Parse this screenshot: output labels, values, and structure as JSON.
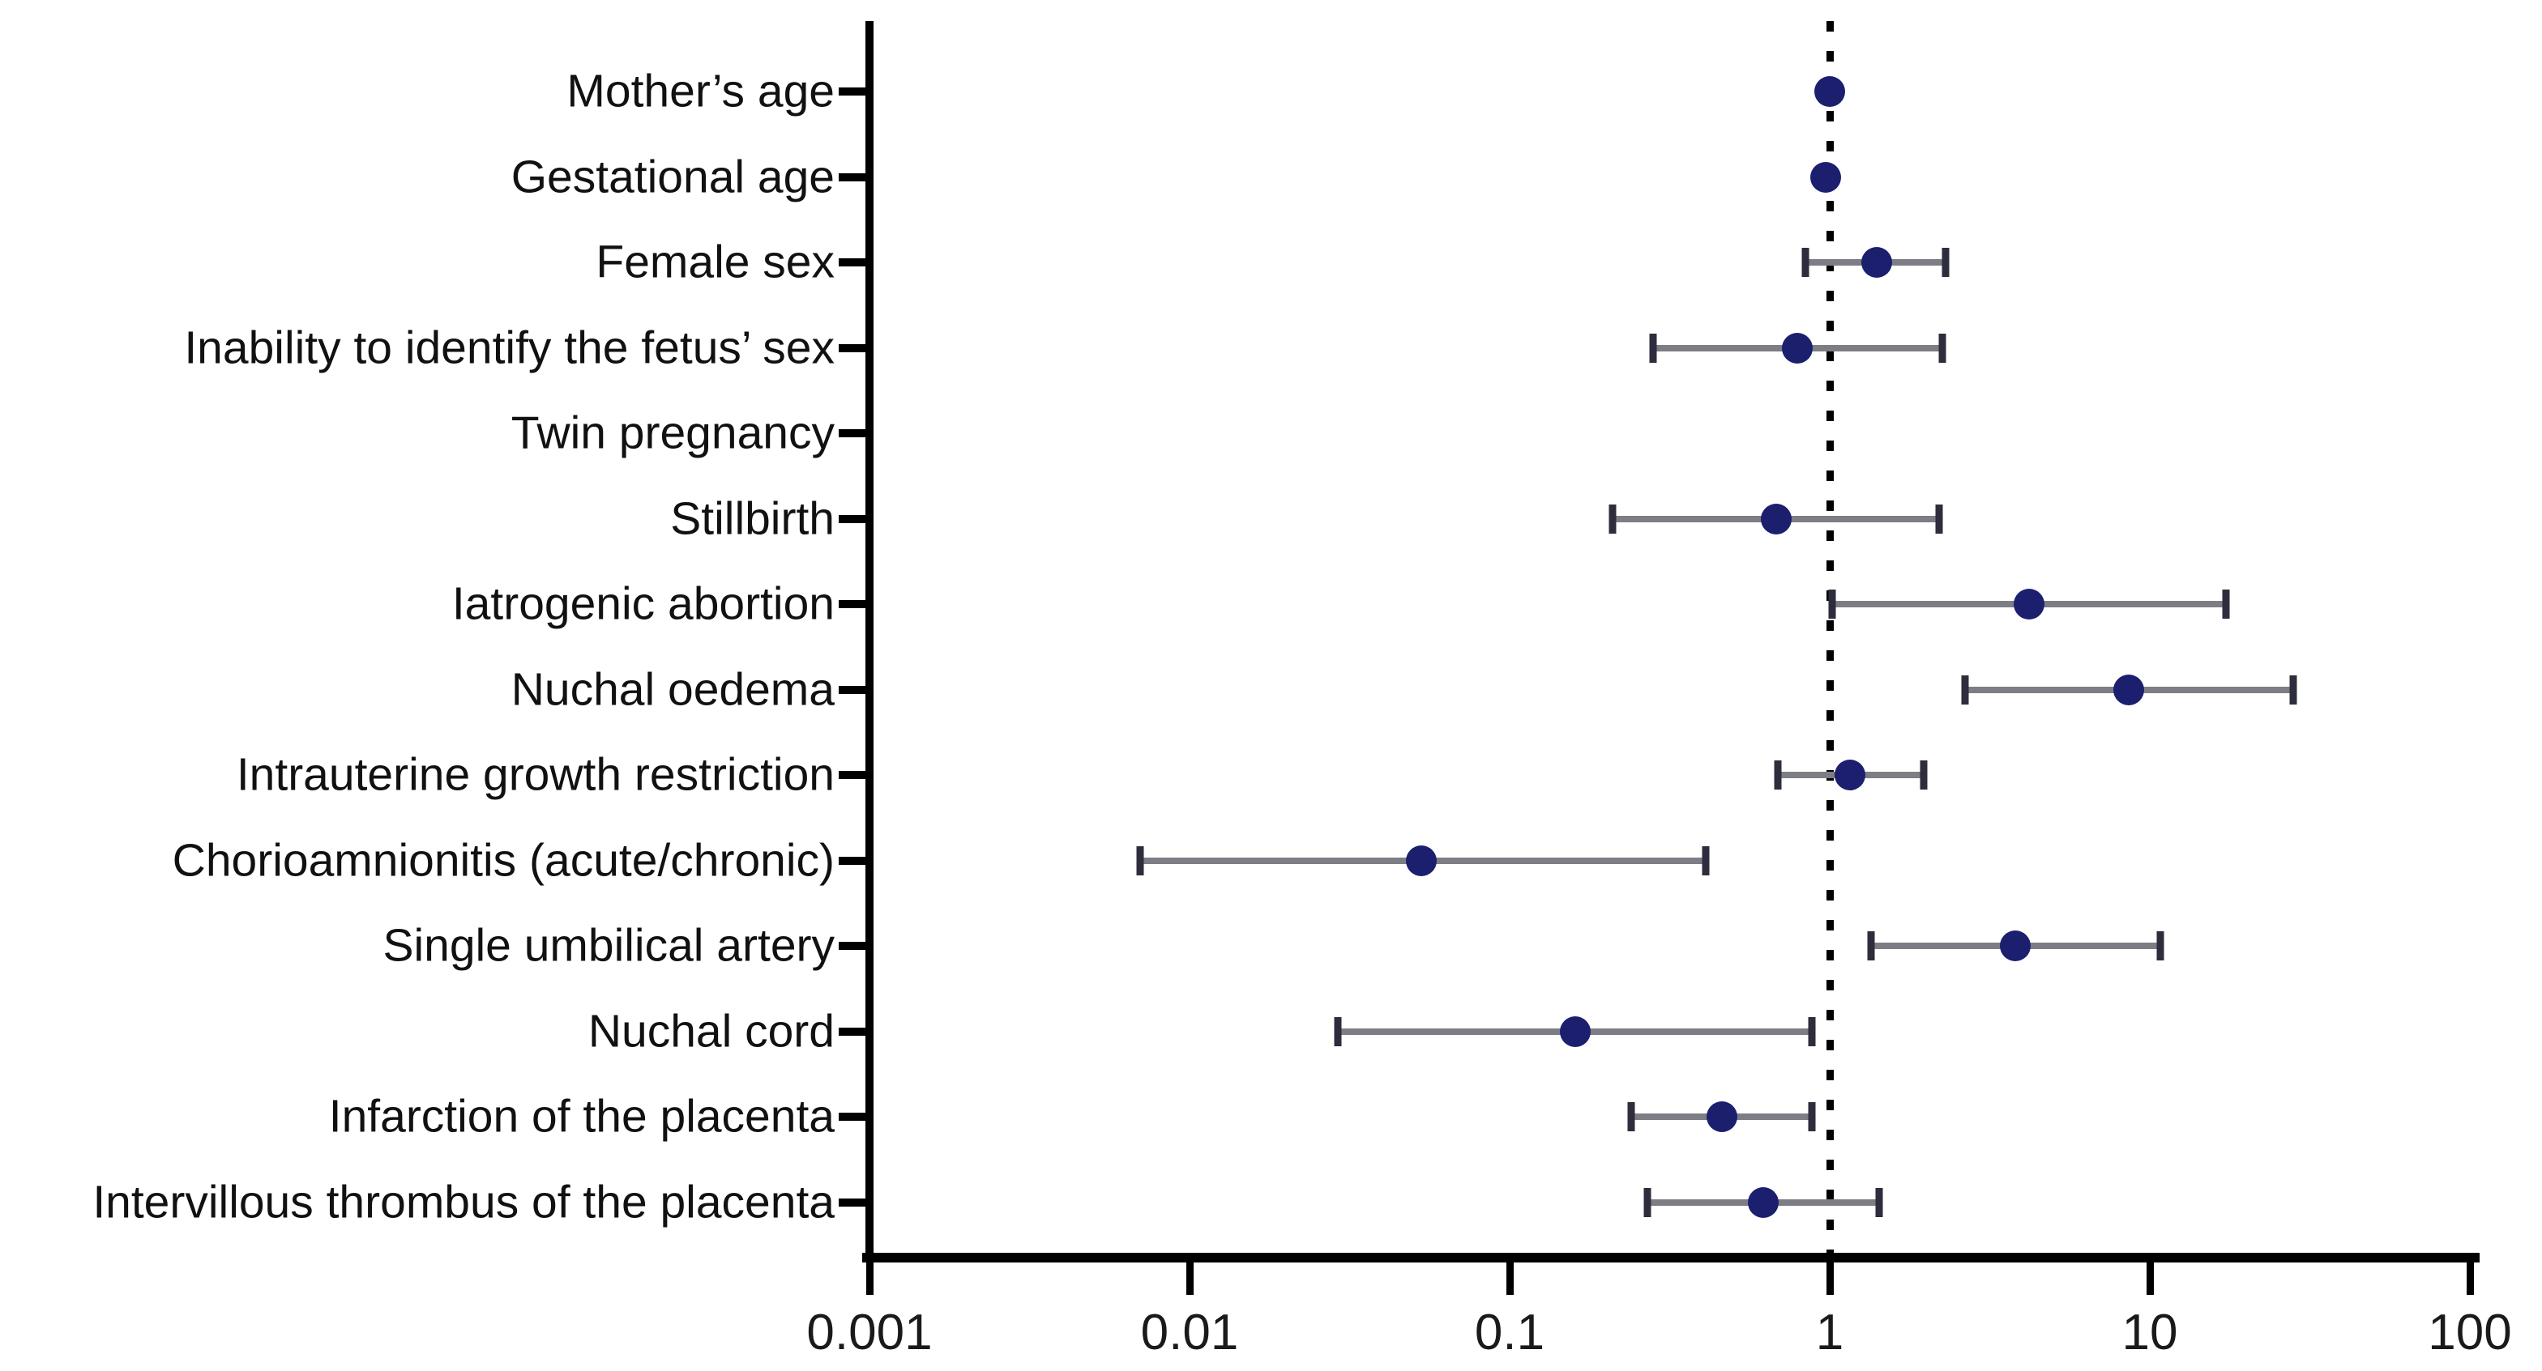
{
  "chart_data": {
    "type": "scatter",
    "subtype": "forest-plot",
    "title": "",
    "xlabel": "",
    "ylabel": "",
    "x_scale": "log",
    "xlim": [
      0.001,
      100
    ],
    "x_ticks": [
      0.001,
      0.01,
      0.1,
      1,
      10,
      100
    ],
    "x_tick_labels": [
      "0.001",
      "0.01",
      "0.1",
      "1",
      "10",
      "100"
    ],
    "reference_line_x": 1,
    "grid": false,
    "legend": "none",
    "rows": [
      {
        "label": "Mother’s age",
        "estimate": 1.0,
        "ci_low": null,
        "ci_high": null
      },
      {
        "label": "Gestational age",
        "estimate": 0.97,
        "ci_low": null,
        "ci_high": null
      },
      {
        "label": "Female sex",
        "estimate": 1.4,
        "ci_low": 0.84,
        "ci_high": 2.3
      },
      {
        "label": "Inability to identify the fetus’ sex",
        "estimate": 0.79,
        "ci_low": 0.28,
        "ci_high": 2.25
      },
      {
        "label": "Twin pregnancy",
        "estimate": null,
        "ci_low": null,
        "ci_high": null
      },
      {
        "label": "Stillbirth",
        "estimate": 0.68,
        "ci_low": 0.21,
        "ci_high": 2.2
      },
      {
        "label": "Iatrogenic abortion",
        "estimate": 4.2,
        "ci_low": 1.02,
        "ci_high": 17.3
      },
      {
        "label": "Nuchal oedema",
        "estimate": 8.6,
        "ci_low": 2.65,
        "ci_high": 28.0
      },
      {
        "label": "Intrauterine growth restriction",
        "estimate": 1.16,
        "ci_low": 0.69,
        "ci_high": 1.97
      },
      {
        "label": "Chorioamnionitis (acute/chronic)",
        "estimate": 0.053,
        "ci_low": 0.007,
        "ci_high": 0.41
      },
      {
        "label": "Single umbilical artery",
        "estimate": 3.8,
        "ci_low": 1.35,
        "ci_high": 10.8
      },
      {
        "label": "Nuchal cord",
        "estimate": 0.16,
        "ci_low": 0.029,
        "ci_high": 0.88
      },
      {
        "label": "Infarction of the placenta",
        "estimate": 0.46,
        "ci_low": 0.24,
        "ci_high": 0.88
      },
      {
        "label": "Intervillous thrombus of the placenta",
        "estimate": 0.62,
        "ci_low": 0.27,
        "ci_high": 1.43
      }
    ],
    "colors": {
      "point": "#1b1f6e",
      "whisker": "#7d7d85",
      "whisker_cap": "#2d2d3d",
      "axis": "#000000",
      "reference_line": "#000000",
      "text": "#111111"
    }
  }
}
